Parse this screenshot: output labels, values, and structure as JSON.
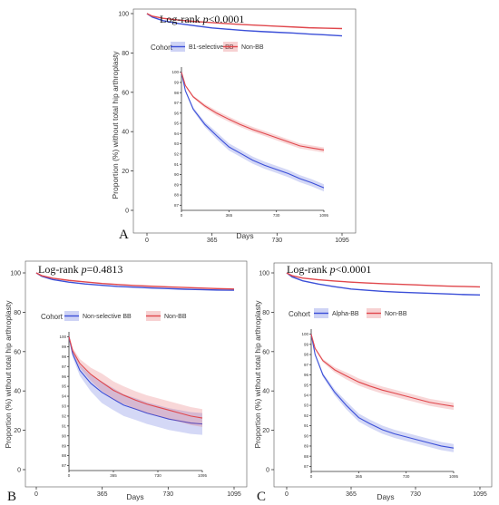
{
  "panels": [
    {
      "panel_label": "A",
      "logrank_prefix": "Log-rank ",
      "logrank_p": "p",
      "logrank_value": "<0.0001",
      "legend_title": "Cohort",
      "ylabel": "Proportion (%) without total hip arthroplasty",
      "xlabel": "Days"
    },
    {
      "panel_label": "B",
      "logrank_prefix": "Log-rank ",
      "logrank_p": "p",
      "logrank_value": "=0.4813",
      "legend_title": "Cohort",
      "ylabel": "Proportion (%) without total hip arthroplasty",
      "xlabel": "Days"
    },
    {
      "panel_label": "C",
      "logrank_prefix": "Log-rank ",
      "logrank_p": "p",
      "logrank_value": "<0.0001",
      "legend_title": "Cohort",
      "ylabel": "Proportion (%) without total hip arthroplasty",
      "xlabel": "Days"
    }
  ],
  "chart_data": [
    {
      "type": "line",
      "subtype": "kaplan-meier",
      "title": "Log-rank p<0.0001",
      "xlabel": "Days",
      "ylabel": "Proportion (%) without total hip arthroplasty",
      "xlim": [
        0,
        1095
      ],
      "ylim": [
        0,
        100
      ],
      "xticks": [
        0,
        365,
        730,
        1095
      ],
      "yticks": [
        0,
        20,
        40,
        60,
        80,
        100
      ],
      "legend_title": "Cohort",
      "legend_position": "top-left",
      "series": [
        {
          "name": "B1-selective BB",
          "color": "#3b4fd8",
          "x": [
            0,
            30,
            90,
            180,
            270,
            365,
            450,
            548,
            640,
            730,
            820,
            910,
            1000,
            1095
          ],
          "y": [
            100,
            98.2,
            96.4,
            94.9,
            93.8,
            92.7,
            92.1,
            91.4,
            90.9,
            90.5,
            90.1,
            89.6,
            89.2,
            88.7
          ],
          "ci": 0.35
        },
        {
          "name": "Non-BB",
          "color": "#e0474c",
          "x": [
            0,
            30,
            90,
            180,
            270,
            365,
            450,
            548,
            640,
            730,
            820,
            910,
            1000,
            1095
          ],
          "y": [
            100,
            98.7,
            97.6,
            96.7,
            96.0,
            95.4,
            94.9,
            94.4,
            94.0,
            93.6,
            93.2,
            92.8,
            92.6,
            92.4
          ],
          "ci": 0.25
        }
      ],
      "inset": {
        "xlim": [
          0,
          1095
        ],
        "ylim": [
          86.5,
          100.5
        ],
        "xticks": [
          0,
          365,
          730,
          1095
        ],
        "yticks": [
          87,
          88,
          89,
          90,
          91,
          92,
          93,
          94,
          95,
          96,
          97,
          98,
          99,
          100
        ]
      }
    },
    {
      "type": "line",
      "subtype": "kaplan-meier",
      "title": "Log-rank p=0.4813",
      "xlabel": "Days",
      "ylabel": "Proportion (%) without total hip arthroplasty",
      "xlim": [
        0,
        1095
      ],
      "ylim": [
        0,
        100
      ],
      "xticks": [
        0,
        365,
        730,
        1095
      ],
      "yticks": [
        0,
        20,
        40,
        60,
        80,
        100
      ],
      "legend_title": "Cohort",
      "legend_position": "top-left",
      "series": [
        {
          "name": "Non-selective BB",
          "color": "#3b4fd8",
          "x": [
            0,
            30,
            90,
            180,
            270,
            365,
            450,
            548,
            640,
            730,
            820,
            910,
            1000,
            1095
          ],
          "y": [
            100,
            98.3,
            96.6,
            95.3,
            94.4,
            93.7,
            93.1,
            92.7,
            92.3,
            92.0,
            91.7,
            91.5,
            91.3,
            91.2
          ],
          "ci": 1.1
        },
        {
          "name": "Non-BB",
          "color": "#e0474c",
          "x": [
            0,
            30,
            90,
            180,
            270,
            365,
            450,
            548,
            640,
            730,
            820,
            910,
            1000,
            1095
          ],
          "y": [
            100,
            98.6,
            97.3,
            96.2,
            95.4,
            94.6,
            94.1,
            93.6,
            93.2,
            92.9,
            92.6,
            92.3,
            92.0,
            91.8
          ],
          "ci": 0.9
        }
      ],
      "inset": {
        "xlim": [
          0,
          1095
        ],
        "ylim": [
          86.5,
          100.5
        ],
        "xticks": [
          0,
          365,
          730,
          1095
        ],
        "yticks": [
          87,
          88,
          89,
          90,
          91,
          92,
          93,
          94,
          95,
          96,
          97,
          98,
          99,
          100
        ]
      }
    },
    {
      "type": "line",
      "subtype": "kaplan-meier",
      "title": "Log-rank p<0.0001",
      "xlabel": "Days",
      "ylabel": "Proportion (%) without total hip arthroplasty",
      "xlim": [
        0,
        1095
      ],
      "ylim": [
        0,
        100
      ],
      "xticks": [
        0,
        365,
        730,
        1095
      ],
      "yticks": [
        0,
        20,
        40,
        60,
        80,
        100
      ],
      "legend_title": "Cohort",
      "legend_position": "top-left",
      "series": [
        {
          "name": "Alpha-BB",
          "color": "#3b4fd8",
          "x": [
            0,
            30,
            90,
            180,
            270,
            365,
            450,
            548,
            640,
            730,
            820,
            910,
            1000,
            1095
          ],
          "y": [
            100,
            98.0,
            96.0,
            94.3,
            93.0,
            91.8,
            91.2,
            90.6,
            90.2,
            89.9,
            89.6,
            89.3,
            89.0,
            88.8
          ],
          "ci": 0.4
        },
        {
          "name": "Non-BB",
          "color": "#e0474c",
          "x": [
            0,
            30,
            90,
            180,
            270,
            365,
            450,
            548,
            640,
            730,
            820,
            910,
            1000,
            1095
          ],
          "y": [
            100,
            98.6,
            97.4,
            96.5,
            95.9,
            95.3,
            94.9,
            94.5,
            94.2,
            93.9,
            93.6,
            93.3,
            93.1,
            92.9
          ],
          "ci": 0.35
        }
      ],
      "inset": {
        "xlim": [
          0,
          1095
        ],
        "ylim": [
          86.5,
          100.5
        ],
        "xticks": [
          0,
          365,
          730,
          1095
        ],
        "yticks": [
          87,
          88,
          89,
          90,
          91,
          92,
          93,
          94,
          95,
          96,
          97,
          98,
          99,
          100
        ]
      }
    }
  ]
}
